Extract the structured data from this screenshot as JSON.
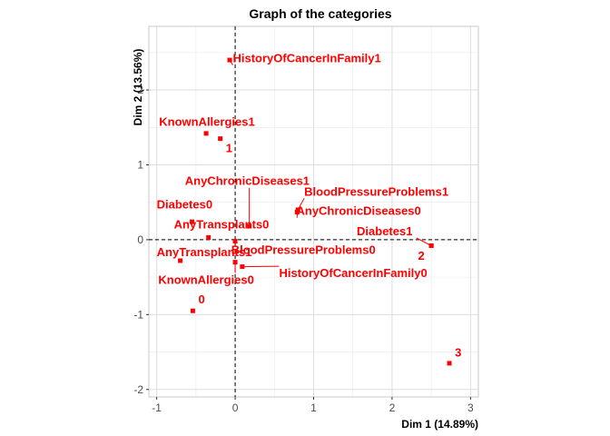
{
  "chart_data": {
    "type": "scatter",
    "title": "Graph of the categories",
    "xlabel": "Dim 1 (14.89%)",
    "ylabel": "Dim 2 (13.56%)",
    "xlim": [
      -1.1,
      3.1
    ],
    "ylim": [
      -2.1,
      2.85
    ],
    "xticks": [
      -1,
      0,
      1,
      2,
      3
    ],
    "yticks": [
      -2,
      -1,
      0,
      1,
      2
    ],
    "grid": true,
    "reference_lines": {
      "x": 0,
      "y": 0
    },
    "point_color": "#ff0000",
    "points": [
      {
        "label": "HistoryOfCancerInFamily1",
        "x": -0.07,
        "y": 2.4,
        "lx": -0.03,
        "ly": 2.37,
        "anchor": "start"
      },
      {
        "label": "KnownAllergies1",
        "x": -0.37,
        "y": 1.42,
        "lx": -0.97,
        "ly": 1.52,
        "anchor": "start"
      },
      {
        "label": "1",
        "x": -0.19,
        "y": 1.35,
        "lx": -0.12,
        "ly": 1.17,
        "anchor": "start"
      },
      {
        "label": "AnyChronicDiseases1",
        "x": 0.18,
        "y": 0.18,
        "lx": -0.64,
        "ly": 0.73,
        "anchor": "start"
      },
      {
        "label": "BloodPressureProblems1",
        "x": 0.8,
        "y": 0.4,
        "lx": 0.88,
        "ly": 0.59,
        "anchor": "start"
      },
      {
        "label": "Diabetes0",
        "x": -0.55,
        "y": 0.24,
        "lx": -1.0,
        "ly": 0.42,
        "anchor": "start"
      },
      {
        "label": "AnyChronicDiseases0",
        "x": 0.79,
        "y": 0.37,
        "lx": 0.78,
        "ly": 0.33,
        "anchor": "start"
      },
      {
        "label": "AnyTransplants0",
        "x": -0.34,
        "y": 0.03,
        "lx": -0.78,
        "ly": 0.15,
        "anchor": "start"
      },
      {
        "label": "Diabetes1",
        "x": 2.5,
        "y": -0.08,
        "lx": 1.55,
        "ly": 0.06,
        "anchor": "start"
      },
      {
        "label": "2",
        "x": 2.5,
        "y": -0.08,
        "lx": 2.33,
        "ly": -0.27,
        "anchor": "start"
      },
      {
        "label": "BloodPressureProblems0",
        "x": 0.0,
        "y": -0.02,
        "lx": -0.05,
        "ly": -0.19,
        "anchor": "start"
      },
      {
        "label": "AnyTransplants1",
        "x": -0.7,
        "y": -0.28,
        "lx": -1.0,
        "ly": -0.22,
        "anchor": "start"
      },
      {
        "label": "HistoryOfCancerInFamily0",
        "x": 0.09,
        "y": -0.36,
        "lx": 0.56,
        "ly": -0.5,
        "anchor": "start"
      },
      {
        "label": "KnownAllergies0",
        "x": 0.0,
        "y": -0.3,
        "lx": -0.98,
        "ly": -0.59,
        "anchor": "start"
      },
      {
        "label": "0",
        "x": -0.54,
        "y": -0.95,
        "lx": -0.47,
        "ly": -0.85,
        "anchor": "start"
      },
      {
        "label": "3",
        "x": 2.73,
        "y": -1.65,
        "lx": 2.8,
        "ly": -1.56,
        "anchor": "start"
      }
    ]
  }
}
